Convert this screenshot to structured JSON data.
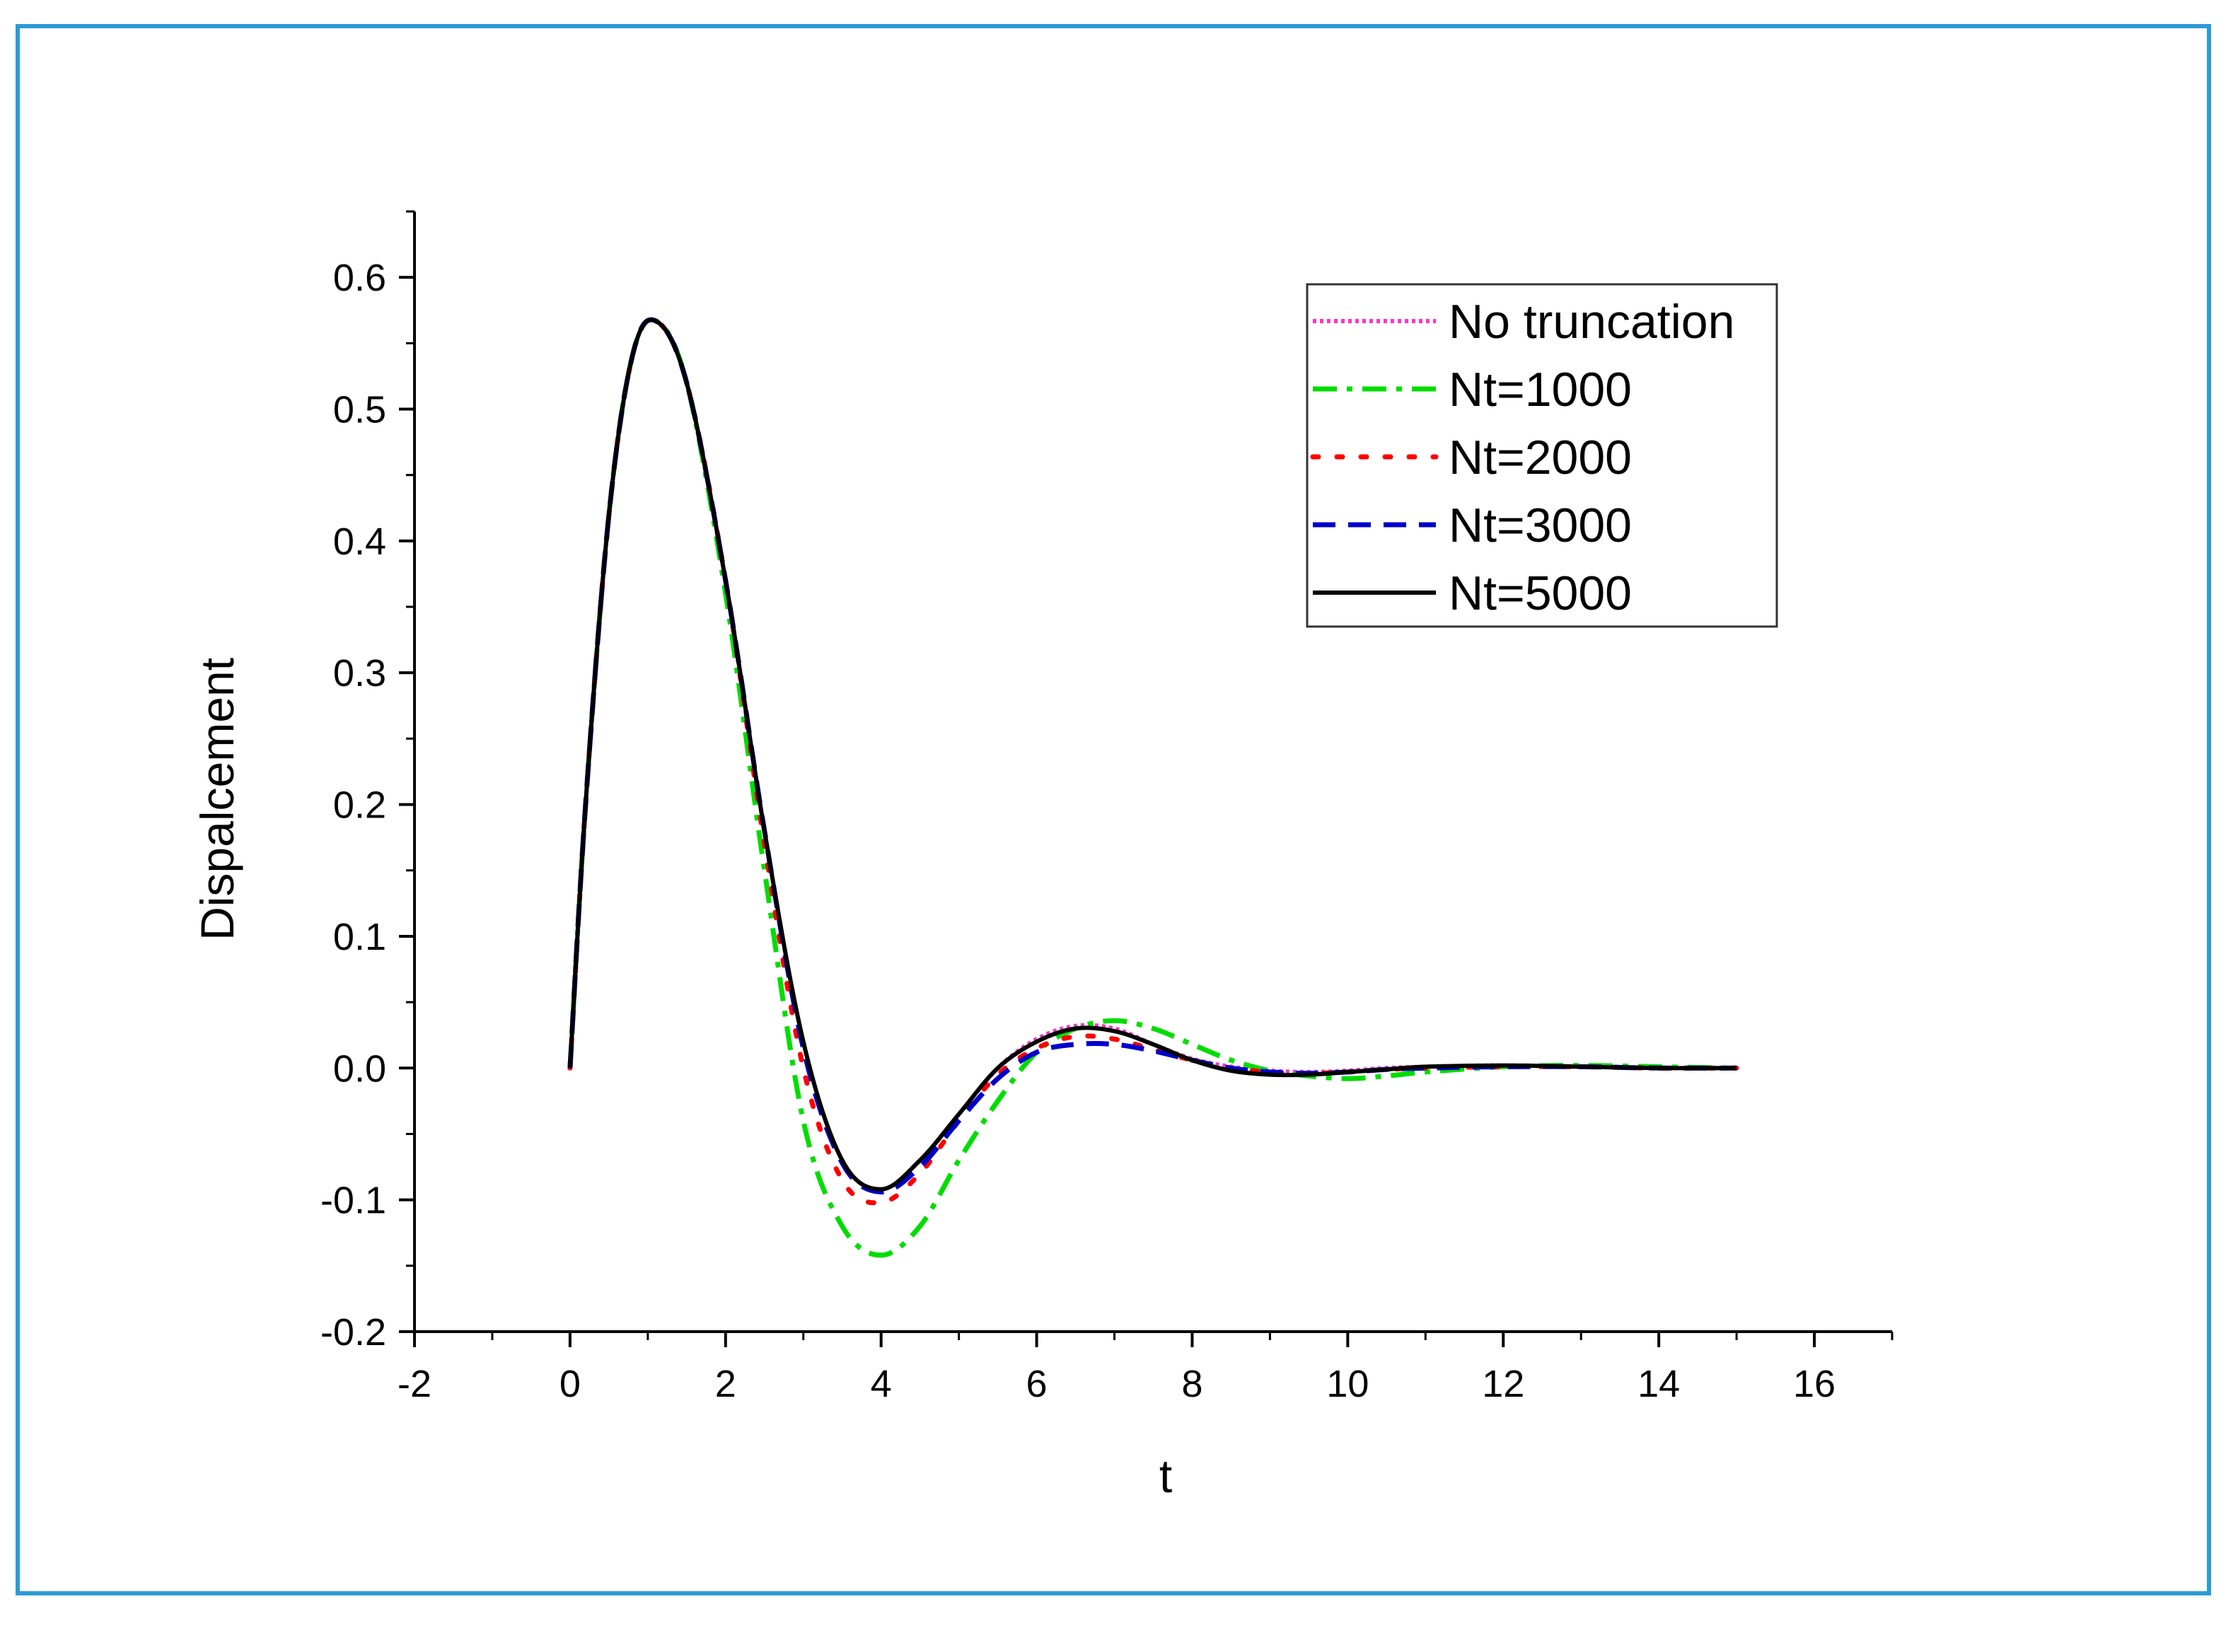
{
  "chart_data": {
    "type": "line",
    "title": "",
    "xlabel": "t",
    "ylabel": "Dispalcement",
    "xlim": [
      -2,
      17
    ],
    "ylim": [
      -0.2,
      0.65
    ],
    "xticks": [
      -2,
      0,
      2,
      4,
      6,
      8,
      10,
      12,
      14,
      16
    ],
    "xtick_labels": [
      "-2",
      "0",
      "2",
      "4",
      "6",
      "8",
      "10",
      "12",
      "14",
      "16"
    ],
    "yticks": [
      -0.2,
      -0.1,
      0.0,
      0.1,
      0.2,
      0.3,
      0.4,
      0.5,
      0.6
    ],
    "ytick_labels": [
      "-0.2",
      "-0.1",
      "0.0",
      "0.1",
      "0.2",
      "0.3",
      "0.4",
      "0.5",
      "0.6"
    ],
    "grid": false,
    "legend_position": "top-right",
    "series": [
      {
        "name": "No truncation",
        "color": "#ff33cc",
        "style": "dotted",
        "x": [
          0,
          0.2,
          0.5,
          0.8,
          1.1,
          1.5,
          2.0,
          2.5,
          3.0,
          3.5,
          4.0,
          4.5,
          5.0,
          5.5,
          6.0,
          6.5,
          7.0,
          7.5,
          8.0,
          8.5,
          9.0,
          9.5,
          10.0,
          10.5,
          11.0,
          12.0,
          13.0,
          14.0,
          15.0
        ],
        "y": [
          0,
          0.2,
          0.42,
          0.54,
          0.567,
          0.52,
          0.37,
          0.18,
          0.02,
          -0.07,
          -0.092,
          -0.07,
          -0.035,
          0.0,
          0.022,
          0.032,
          0.03,
          0.018,
          0.007,
          0.001,
          -0.002,
          -0.003,
          -0.002,
          0.0,
          0.001,
          0.002,
          0.001,
          0.0,
          0.0
        ]
      },
      {
        "name": "Nt=1000",
        "color": "#00dd00",
        "style": "dash-dot",
        "x": [
          0,
          0.2,
          0.5,
          0.8,
          1.1,
          1.5,
          2.0,
          2.5,
          3.0,
          3.5,
          4.0,
          4.5,
          5.0,
          5.5,
          6.0,
          6.5,
          7.0,
          7.5,
          8.0,
          8.5,
          9.0,
          9.5,
          10.0,
          10.5,
          11.0,
          12.0,
          13.0,
          14.0,
          15.0
        ],
        "y": [
          0,
          0.2,
          0.42,
          0.54,
          0.567,
          0.52,
          0.36,
          0.15,
          -0.04,
          -0.12,
          -0.142,
          -0.12,
          -0.07,
          -0.025,
          0.012,
          0.03,
          0.036,
          0.03,
          0.018,
          0.006,
          -0.002,
          -0.006,
          -0.008,
          -0.006,
          -0.003,
          0.001,
          0.002,
          0.001,
          0.0
        ]
      },
      {
        "name": "Nt=2000",
        "color": "#ff0000",
        "style": "dotted-sparse",
        "x": [
          0,
          0.2,
          0.5,
          0.8,
          1.1,
          1.5,
          2.0,
          2.5,
          3.0,
          3.5,
          4.0,
          4.5,
          5.0,
          5.5,
          6.0,
          6.5,
          7.0,
          7.5,
          8.0,
          8.5,
          9.0,
          9.5,
          10.0,
          10.5,
          11.0,
          12.0,
          13.0,
          14.0,
          15.0
        ],
        "y": [
          0,
          0.2,
          0.42,
          0.54,
          0.567,
          0.52,
          0.37,
          0.17,
          0.0,
          -0.085,
          -0.102,
          -0.08,
          -0.04,
          -0.005,
          0.015,
          0.024,
          0.022,
          0.014,
          0.006,
          0.0,
          -0.003,
          -0.004,
          -0.003,
          -0.001,
          0.0,
          0.001,
          0.001,
          0.0,
          0.0
        ]
      },
      {
        "name": "Nt=3000",
        "color": "#0000cc",
        "style": "dashed",
        "x": [
          0,
          0.2,
          0.5,
          0.8,
          1.1,
          1.5,
          2.0,
          2.5,
          3.0,
          3.5,
          4.0,
          4.5,
          5.0,
          5.5,
          6.0,
          6.5,
          7.0,
          7.5,
          8.0,
          8.5,
          9.0,
          9.5,
          10.0,
          10.5,
          11.0,
          12.0,
          13.0,
          14.0,
          15.0
        ],
        "y": [
          0,
          0.2,
          0.42,
          0.54,
          0.567,
          0.52,
          0.37,
          0.18,
          0.015,
          -0.072,
          -0.094,
          -0.075,
          -0.04,
          -0.008,
          0.012,
          0.018,
          0.018,
          0.013,
          0.006,
          0.0,
          -0.003,
          -0.004,
          -0.003,
          -0.001,
          0.0,
          0.001,
          0.001,
          0.0,
          0.0
        ]
      },
      {
        "name": "Nt=5000",
        "color": "#000000",
        "style": "solid",
        "x": [
          0,
          0.2,
          0.5,
          0.8,
          1.1,
          1.5,
          2.0,
          2.5,
          3.0,
          3.5,
          4.0,
          4.5,
          5.0,
          5.5,
          6.0,
          6.5,
          7.0,
          7.5,
          8.0,
          8.5,
          9.0,
          9.5,
          10.0,
          10.5,
          11.0,
          12.0,
          13.0,
          14.0,
          15.0
        ],
        "y": [
          0,
          0.2,
          0.42,
          0.54,
          0.567,
          0.52,
          0.37,
          0.18,
          0.02,
          -0.07,
          -0.092,
          -0.07,
          -0.035,
          0.0,
          0.02,
          0.03,
          0.028,
          0.018,
          0.006,
          -0.002,
          -0.005,
          -0.005,
          -0.003,
          -0.001,
          0.001,
          0.002,
          0.001,
          0.0,
          0.0
        ]
      }
    ]
  }
}
